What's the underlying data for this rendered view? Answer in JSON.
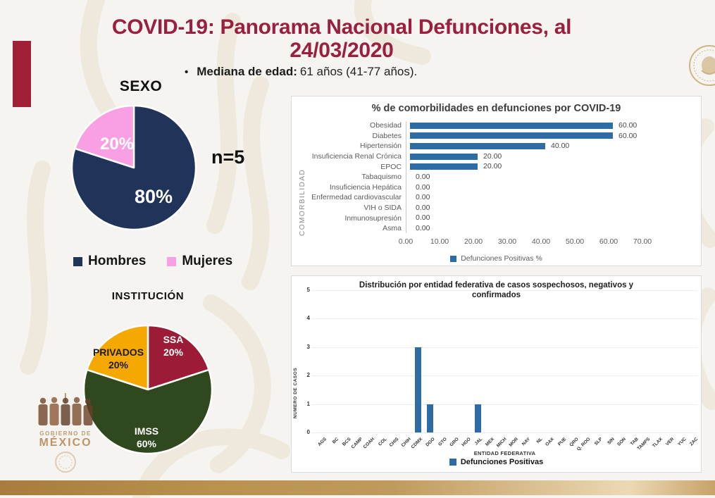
{
  "page": {
    "title_line1": "COVID-19: Panorama Nacional Defunciones, al",
    "title_line2": "24/03/2020",
    "bullet": "•",
    "median_age_label": "Mediana de edad:",
    "median_age_value": "61 años (41-77 años)."
  },
  "branding": {
    "government_line1": "GOBIERNO DE",
    "government_line2": "MÉXICO",
    "accent_red": "#9b1f3f",
    "gold": "#bb9257"
  },
  "chart_data": [
    {
      "id": "sexo",
      "type": "pie",
      "title": "SEXO",
      "sample_size_label": "n=5",
      "slices": [
        {
          "label": "Hombres",
          "value": 80,
          "pct_label": "80%",
          "color": "#203358",
          "label_color": "#ffffff"
        },
        {
          "label": "Mujeres",
          "value": 20,
          "pct_label": "20%",
          "color": "#f9a0e4",
          "label_color": "#ffffff"
        }
      ],
      "legend_position": "bottom"
    },
    {
      "id": "institucion",
      "type": "pie",
      "title": "INSTITUCIÓN",
      "slices": [
        {
          "label": "SSA",
          "value": 20,
          "pct_label": "20%",
          "color": "#9c1b37",
          "label_color": "#ffffff"
        },
        {
          "label": "IMSS",
          "value": 60,
          "pct_label": "60%",
          "color": "#30481d",
          "label_color": "#ffffff"
        },
        {
          "label": "PRIVADOS",
          "value": 20,
          "pct_label": "20%",
          "color": "#f5a800",
          "label_color": "#1a1a1a"
        }
      ]
    },
    {
      "id": "comorbilidades",
      "type": "bar",
      "orientation": "horizontal",
      "title": "% de comorbilidades en defunciones por COVID-19",
      "ylabel": "COMORBILIDAD",
      "categories": [
        "Obesidad",
        "Diabetes",
        "Hipertensión",
        "Insuficiencia Renal Crónica",
        "EPOC",
        "Tabaquismo",
        "Insuficiencia Hepática",
        "Enfermedad cardiovascular",
        "VIH o SIDA",
        "Inmunosupresión",
        "Asma"
      ],
      "values": [
        60,
        60,
        40,
        20,
        20,
        0,
        0,
        0,
        0,
        0,
        0
      ],
      "value_labels": [
        "60.00",
        "60.00",
        "40.00",
        "20.00",
        "20.00",
        "0.00",
        "0.00",
        "0.00",
        "0.00",
        "0.00",
        "0.00"
      ],
      "xlim": [
        0,
        70
      ],
      "x_ticks": [
        "0.00",
        "10.00",
        "20.00",
        "30.00",
        "40.00",
        "50.00",
        "60.00",
        "70.00"
      ],
      "legend": "Defunciones Positivas %",
      "bar_color": "#2e6ca6",
      "grid": false
    },
    {
      "id": "entidades",
      "type": "bar",
      "orientation": "vertical",
      "title_line1": "Distribución por entidad federativa de casos sospechosos, negativos y",
      "title_line2": "confirmados",
      "xlabel": "ENTIDAD FEDERATIVA",
      "ylabel": "NUMERO DE CASOS",
      "categories": [
        "AGS",
        "BC",
        "BCS",
        "CAMP",
        "COAH",
        "COL",
        "CHIS",
        "CHIH",
        "CDMX",
        "DGO",
        "GTO",
        "GRO",
        "HGO",
        "JAL",
        "MEX",
        "MICH",
        "MOR",
        "NAY",
        "NL",
        "OAX",
        "PUE",
        "QRO",
        "Q. ROO",
        "SLP",
        "SIN",
        "SON",
        "TAB",
        "TAMPS",
        "TLAX",
        "VER",
        "YUC",
        "ZAC"
      ],
      "values": [
        0,
        0,
        0,
        0,
        0,
        0,
        0,
        0,
        3,
        1,
        0,
        0,
        0,
        1,
        0,
        0,
        0,
        0,
        0,
        0,
        0,
        0,
        0,
        0,
        0,
        0,
        0,
        0,
        0,
        0,
        0,
        0
      ],
      "ylim": [
        0,
        5
      ],
      "y_ticks": [
        0,
        1,
        2,
        3,
        4,
        5
      ],
      "legend": "Defunciones Positivas",
      "bar_color": "#2e6ca6",
      "grid": true
    }
  ]
}
